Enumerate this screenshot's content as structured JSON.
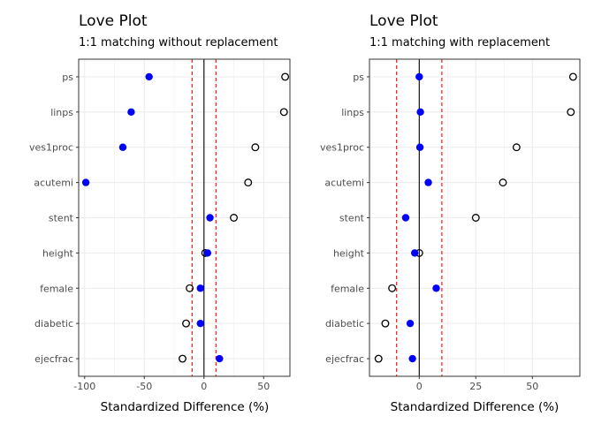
{
  "colors": {
    "background": "#ffffff",
    "panel_border": "#333333",
    "grid": "#ebebeb",
    "threshold": "#ff0000",
    "zero_line": "#000000",
    "matched_point": "#0000ff",
    "unmatched_point": "#000000"
  },
  "chart_data": [
    {
      "type": "scatter",
      "title": "Love Plot",
      "subtitle": "1:1 matching without replacement",
      "xlabel": "Standardized Difference (%)",
      "ylabel": "",
      "categories": [
        "ps",
        "linps",
        "ves1proc",
        "acutemi",
        "stent",
        "height",
        "female",
        "diabetic",
        "ejecfrac"
      ],
      "xlim": [
        -105,
        72
      ],
      "xticks": [
        -100,
        -50,
        0,
        50
      ],
      "xtick_labels": [
        "-100",
        "-50",
        "0",
        "50"
      ],
      "reference_lines": {
        "zero": 0,
        "thresholds": [
          -10,
          10
        ]
      },
      "grid": true,
      "series": [
        {
          "style": "open-circle",
          "values": [
            68,
            67,
            43,
            37,
            25,
            1,
            -12,
            -15,
            -18
          ]
        },
        {
          "style": "filled-blue",
          "values": [
            -46,
            -61,
            -68,
            -99,
            5,
            3,
            -3,
            -3,
            13
          ]
        }
      ]
    },
    {
      "type": "scatter",
      "title": "Love Plot",
      "subtitle": "1:1 matching with replacement",
      "xlabel": "Standardized Difference (%)",
      "ylabel": "",
      "categories": [
        "ps",
        "linps",
        "ves1proc",
        "acutemi",
        "stent",
        "height",
        "female",
        "diabetic",
        "ejecfrac"
      ],
      "xlim": [
        -22,
        71
      ],
      "xticks": [
        0,
        25,
        50
      ],
      "xtick_labels": [
        "0",
        "25",
        "50"
      ],
      "reference_lines": {
        "zero": 0,
        "thresholds": [
          -10,
          10
        ]
      },
      "grid": true,
      "series": [
        {
          "style": "open-circle",
          "values": [
            68,
            67,
            43,
            37,
            25,
            0,
            -12,
            -15,
            -18
          ]
        },
        {
          "style": "filled-blue",
          "values": [
            0,
            0.5,
            0.3,
            4,
            -6,
            -2,
            7.5,
            -4,
            -3
          ]
        }
      ]
    }
  ]
}
